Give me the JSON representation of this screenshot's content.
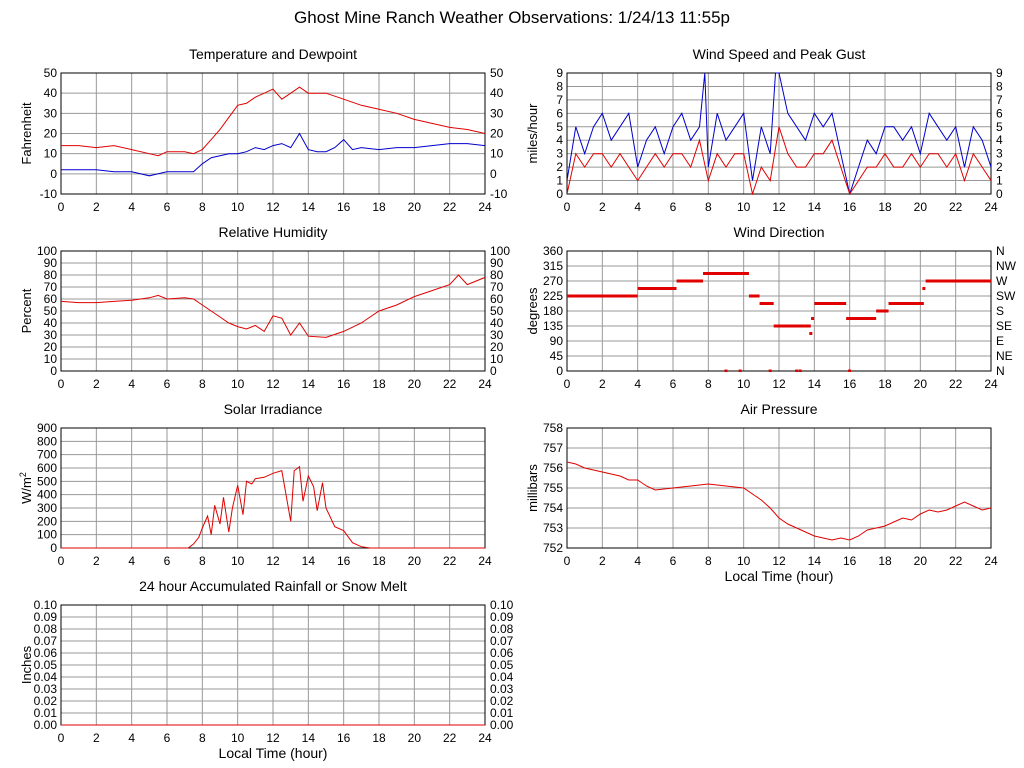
{
  "page": {
    "title": "Ghost Mine Ranch Weather Observations: 1/24/13 11:55p"
  },
  "colors": {
    "grid": "#999999",
    "red": "#e00000",
    "blue": "#0000cc",
    "frame": "#000000"
  },
  "chart_data": [
    {
      "id": "temperature",
      "type": "line",
      "title": "Temperature and Dewpoint",
      "ylabel": "Fahrenheit",
      "xlabel": "",
      "xlim": [
        0,
        24
      ],
      "ylim": [
        -10,
        50
      ],
      "x_ticks": [
        "0",
        "2",
        "4",
        "6",
        "8",
        "10",
        "12",
        "14",
        "16",
        "18",
        "20",
        "22",
        "24"
      ],
      "y_ticks": [
        "-10",
        "0",
        "10",
        "20",
        "30",
        "40",
        "50"
      ],
      "right_ticks": [
        "-10",
        "0",
        "10",
        "20",
        "30",
        "40",
        "50"
      ],
      "grid": true,
      "series": [
        {
          "color": "#e00000",
          "x": [
            0,
            1,
            2,
            3,
            4,
            5,
            5.5,
            6,
            7,
            7.5,
            8,
            8.5,
            9,
            9.5,
            10,
            10.5,
            11,
            11.5,
            12,
            12.5,
            13,
            13.5,
            14,
            15,
            16,
            17,
            18,
            19,
            20,
            21,
            22,
            23,
            24
          ],
          "y": [
            14,
            14,
            13,
            14,
            12,
            10,
            9,
            11,
            11,
            10,
            12,
            17,
            22,
            28,
            34,
            35,
            38,
            40,
            42,
            37,
            40,
            43,
            40,
            40,
            37,
            34,
            32,
            30,
            27,
            25,
            23,
            22,
            20
          ]
        },
        {
          "color": "#0000cc",
          "x": [
            0,
            1,
            2,
            3,
            4,
            5,
            5.5,
            6,
            7,
            7.5,
            8,
            8.5,
            9,
            9.5,
            10,
            10.5,
            11,
            11.5,
            12,
            12.5,
            13,
            13.5,
            14,
            14.5,
            15,
            15.5,
            16,
            16.5,
            17,
            18,
            19,
            20,
            21,
            22,
            23,
            24
          ],
          "y": [
            2,
            2,
            2,
            1,
            1,
            -1,
            0,
            1,
            1,
            1,
            5,
            8,
            9,
            10,
            10,
            11,
            13,
            12,
            14,
            15,
            13,
            20,
            12,
            11,
            11,
            13,
            17,
            12,
            13,
            12,
            13,
            13,
            14,
            15,
            15,
            14
          ]
        }
      ]
    },
    {
      "id": "wind",
      "type": "line",
      "title": "Wind Speed and Peak Gust",
      "ylabel": "miles/hour",
      "xlabel": "",
      "xlim": [
        0,
        24
      ],
      "ylim": [
        0,
        9
      ],
      "x_ticks": [
        "0",
        "2",
        "4",
        "6",
        "8",
        "10",
        "12",
        "14",
        "16",
        "18",
        "20",
        "22",
        "24"
      ],
      "y_ticks": [
        "0",
        "1",
        "2",
        "3",
        "4",
        "5",
        "6",
        "7",
        "8",
        "9"
      ],
      "right_ticks": [
        "0",
        "1",
        "2",
        "3",
        "4",
        "5",
        "6",
        "7",
        "8",
        "9"
      ],
      "grid": true,
      "series": [
        {
          "color": "#0000cc",
          "x": [
            0,
            0.5,
            1,
            1.5,
            2,
            2.5,
            3,
            3.5,
            4,
            4.5,
            5,
            5.5,
            6,
            6.5,
            7,
            7.5,
            7.8,
            8,
            8.5,
            9,
            9.5,
            10,
            10.5,
            11,
            11.5,
            11.8,
            12,
            12.5,
            13,
            13.5,
            14,
            14.5,
            15,
            15.5,
            16,
            16.5,
            17,
            17.5,
            18,
            18.5,
            19,
            19.5,
            20,
            20.5,
            21,
            21.5,
            22,
            22.5,
            23,
            23.5,
            24
          ],
          "y": [
            1,
            5,
            3,
            5,
            6,
            4,
            5,
            6,
            2,
            4,
            5,
            3,
            5,
            6,
            4,
            5,
            9,
            2,
            6,
            4,
            5,
            6,
            1,
            5,
            3,
            9,
            9,
            6,
            5,
            4,
            6,
            5,
            6,
            3,
            0,
            2,
            4,
            3,
            5,
            5,
            4,
            5,
            3,
            6,
            5,
            4,
            5,
            2,
            5,
            4,
            2
          ]
        },
        {
          "color": "#e00000",
          "x": [
            0,
            0.5,
            1,
            1.5,
            2,
            2.5,
            3,
            3.5,
            4,
            4.5,
            5,
            5.5,
            6,
            6.5,
            7,
            7.5,
            8,
            8.5,
            9,
            9.5,
            10,
            10.5,
            11,
            11.5,
            12,
            12.5,
            13,
            13.5,
            14,
            14.5,
            15,
            15.5,
            16,
            16.5,
            17,
            17.5,
            18,
            18.5,
            19,
            19.5,
            20,
            20.5,
            21,
            21.5,
            22,
            22.5,
            23,
            23.5,
            24
          ],
          "y": [
            0,
            3,
            2,
            3,
            3,
            2,
            3,
            2,
            1,
            2,
            3,
            2,
            3,
            3,
            2,
            4,
            1,
            3,
            2,
            3,
            3,
            0,
            2,
            1,
            5,
            3,
            2,
            2,
            3,
            3,
            4,
            2,
            0,
            1,
            2,
            2,
            3,
            2,
            2,
            3,
            2,
            3,
            3,
            2,
            3,
            1,
            3,
            2,
            1
          ]
        }
      ]
    },
    {
      "id": "humidity",
      "type": "line",
      "title": "Relative Humidity",
      "ylabel": "Percent",
      "xlabel": "",
      "xlim": [
        0,
        24
      ],
      "ylim": [
        0,
        100
      ],
      "x_ticks": [
        "0",
        "2",
        "4",
        "6",
        "8",
        "10",
        "12",
        "14",
        "16",
        "18",
        "20",
        "22",
        "24"
      ],
      "y_ticks": [
        "0",
        "10",
        "20",
        "30",
        "40",
        "50",
        "60",
        "70",
        "80",
        "90",
        "100"
      ],
      "right_ticks": [
        "0",
        "10",
        "20",
        "30",
        "40",
        "50",
        "60",
        "70",
        "80",
        "90",
        "100"
      ],
      "grid": true,
      "series": [
        {
          "color": "#e00000",
          "x": [
            0,
            1,
            2,
            3,
            4,
            5,
            5.5,
            6,
            7,
            7.5,
            8,
            8.5,
            9,
            9.5,
            10,
            10.5,
            11,
            11.5,
            12,
            12.5,
            13,
            13.5,
            14,
            15,
            16,
            17,
            18,
            19,
            20,
            21,
            22,
            22.5,
            23,
            24
          ],
          "y": [
            58,
            57,
            57,
            58,
            59,
            61,
            63,
            60,
            61,
            60,
            55,
            50,
            45,
            40,
            37,
            35,
            38,
            33,
            46,
            44,
            30,
            40,
            29,
            28,
            33,
            40,
            50,
            55,
            62,
            67,
            72,
            80,
            72,
            78
          ]
        }
      ]
    },
    {
      "id": "direction",
      "type": "scatter",
      "title": "Wind Direction",
      "ylabel": "degrees",
      "xlabel": "",
      "xlim": [
        0,
        24
      ],
      "ylim": [
        0,
        360
      ],
      "x_ticks": [
        "0",
        "2",
        "4",
        "6",
        "8",
        "10",
        "12",
        "14",
        "16",
        "18",
        "20",
        "22",
        "24"
      ],
      "y_ticks": [
        "0",
        "45",
        "90",
        "135",
        "180",
        "225",
        "270",
        "315",
        "360"
      ],
      "right_ticks": [
        "N",
        "NE",
        "E",
        "SE",
        "S",
        "SW",
        "W",
        "NW",
        "N"
      ],
      "grid": true,
      "segments": [
        {
          "x0": 0,
          "x1": 4,
          "y": 225
        },
        {
          "x0": 4,
          "x1": 6.2,
          "y": 247.5
        },
        {
          "x0": 6.2,
          "x1": 7.7,
          "y": 270
        },
        {
          "x0": 7.7,
          "x1": 10.3,
          "y": 292.5
        },
        {
          "x0": 10.3,
          "x1": 10.9,
          "y": 225
        },
        {
          "x0": 10.9,
          "x1": 11.7,
          "y": 202.5
        },
        {
          "x0": 11.7,
          "x1": 13.8,
          "y": 135
        },
        {
          "x0": 14,
          "x1": 15.8,
          "y": 202.5
        },
        {
          "x0": 15.8,
          "x1": 17.5,
          "y": 157.5
        },
        {
          "x0": 17.5,
          "x1": 18.2,
          "y": 180
        },
        {
          "x0": 18.2,
          "x1": 20.2,
          "y": 202.5
        },
        {
          "x0": 20.3,
          "x1": 24,
          "y": 270
        }
      ],
      "points": [
        {
          "x": 9.0,
          "y": 0
        },
        {
          "x": 9.8,
          "y": 0
        },
        {
          "x": 11.5,
          "y": 0
        },
        {
          "x": 13.0,
          "y": 0
        },
        {
          "x": 13.2,
          "y": 0
        },
        {
          "x": 16.0,
          "y": 0
        },
        {
          "x": 13.8,
          "y": 112.5
        },
        {
          "x": 13.9,
          "y": 157.5
        },
        {
          "x": 20.2,
          "y": 247.5
        }
      ]
    },
    {
      "id": "solar",
      "type": "line",
      "title": "Solar Irradiance",
      "ylabel": "W/m",
      "ylabel_sup": "2",
      "xlabel": "",
      "xlim": [
        0,
        24
      ],
      "ylim": [
        0,
        900
      ],
      "x_ticks": [
        "0",
        "2",
        "4",
        "6",
        "8",
        "10",
        "12",
        "14",
        "16",
        "18",
        "20",
        "22",
        "24"
      ],
      "y_ticks": [
        "0",
        "100",
        "200",
        "300",
        "400",
        "500",
        "600",
        "700",
        "800",
        "900"
      ],
      "right_ticks": [],
      "grid": true,
      "series": [
        {
          "color": "#e00000",
          "x": [
            0,
            7.2,
            7.5,
            7.8,
            8,
            8.3,
            8.5,
            8.7,
            9,
            9.2,
            9.5,
            9.7,
            10,
            10.3,
            10.5,
            10.8,
            11,
            11.5,
            12,
            12.5,
            13,
            13.2,
            13.5,
            13.7,
            14,
            14.3,
            14.5,
            14.8,
            15,
            15.5,
            16,
            16.5,
            17,
            17.5,
            24
          ],
          "y": [
            0,
            0,
            30,
            80,
            150,
            240,
            100,
            320,
            180,
            380,
            120,
            300,
            470,
            250,
            500,
            480,
            520,
            530,
            560,
            580,
            200,
            580,
            610,
            350,
            540,
            460,
            280,
            490,
            300,
            160,
            130,
            40,
            10,
            0,
            0
          ]
        }
      ]
    },
    {
      "id": "pressure",
      "type": "line",
      "title": "Air Pressure",
      "ylabel": "millibars",
      "xlabel": "Local Time (hour)",
      "xlim": [
        0,
        24
      ],
      "ylim": [
        752,
        758
      ],
      "x_ticks": [
        "0",
        "2",
        "4",
        "6",
        "8",
        "10",
        "12",
        "14",
        "16",
        "18",
        "20",
        "22",
        "24"
      ],
      "y_ticks": [
        "752",
        "753",
        "754",
        "755",
        "756",
        "757",
        "758"
      ],
      "right_ticks": [],
      "grid": true,
      "series": [
        {
          "color": "#e00000",
          "x": [
            0,
            0.5,
            1,
            2,
            3,
            3.5,
            4,
            4.5,
            5,
            6,
            7,
            8,
            9,
            10,
            10.5,
            11,
            11.5,
            12,
            12.5,
            13,
            13.5,
            14,
            14.5,
            15,
            15.5,
            16,
            16.5,
            17,
            17.5,
            18,
            18.5,
            19,
            19.5,
            20,
            20.5,
            21,
            21.5,
            22,
            22.5,
            23,
            23.5,
            24
          ],
          "y": [
            756.3,
            756.2,
            756.0,
            755.8,
            755.6,
            755.4,
            755.4,
            755.1,
            754.9,
            755.0,
            755.1,
            755.2,
            755.1,
            755.0,
            754.7,
            754.4,
            754.0,
            753.5,
            753.2,
            753.0,
            752.8,
            752.6,
            752.5,
            752.4,
            752.5,
            752.4,
            752.6,
            752.9,
            753.0,
            753.1,
            753.3,
            753.5,
            753.4,
            753.7,
            753.9,
            753.8,
            753.9,
            754.1,
            754.3,
            754.1,
            753.9,
            754.0
          ]
        }
      ]
    },
    {
      "id": "rain",
      "type": "line",
      "title": "24 hour Accumulated Rainfall or Snow Melt",
      "ylabel": "Inches",
      "xlabel": "Local Time (hour)",
      "xlim": [
        0,
        24
      ],
      "ylim": [
        0,
        0.1
      ],
      "x_ticks": [
        "0",
        "2",
        "4",
        "6",
        "8",
        "10",
        "12",
        "14",
        "16",
        "18",
        "20",
        "22",
        "24"
      ],
      "y_ticks": [
        "0.00",
        "0.01",
        "0.02",
        "0.03",
        "0.04",
        "0.05",
        "0.06",
        "0.07",
        "0.08",
        "0.09",
        "0.10"
      ],
      "right_ticks": [
        "0.00",
        "0.01",
        "0.02",
        "0.03",
        "0.04",
        "0.05",
        "0.06",
        "0.07",
        "0.08",
        "0.09",
        "0.10"
      ],
      "grid": true,
      "series": [
        {
          "color": "#e00000",
          "x": [
            0,
            24
          ],
          "y": [
            0,
            0
          ]
        }
      ]
    }
  ]
}
